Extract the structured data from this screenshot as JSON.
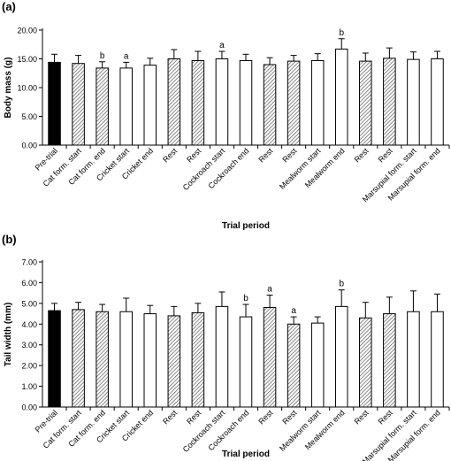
{
  "chart_data": [
    {
      "type": "bar",
      "panel_label": "(a)",
      "ylabel": "Body mass (g)",
      "xlabel": "Trial period",
      "ylim": [
        0,
        20
      ],
      "y_ticks": [
        "0.00",
        "5.00",
        "10.00",
        "15.00",
        "20.00"
      ],
      "y_tick_values": [
        0,
        5,
        10,
        15,
        20
      ],
      "grid": false,
      "categories": [
        "Pre-trial",
        "Cat form. start",
        "Cat form. end",
        "Cricket start",
        "Cricket end",
        "Rest",
        "Rest",
        "Cockroach start",
        "Cockroach end",
        "Rest",
        "Rest",
        "Mealworm start",
        "Mealworm end",
        "Rest",
        "Rest",
        "Marsupial form. start",
        "Marsupial form. end"
      ],
      "values": [
        14.4,
        14.2,
        13.4,
        13.4,
        13.9,
        15.0,
        14.7,
        15.0,
        14.7,
        14.0,
        14.6,
        14.7,
        16.7,
        14.6,
        15.1,
        14.9,
        15.0
      ],
      "errors": [
        1.4,
        1.4,
        1.1,
        1.0,
        1.2,
        1.6,
        1.6,
        1.3,
        1.1,
        1.2,
        1.0,
        1.2,
        1.8,
        1.4,
        1.8,
        1.3,
        1.3
      ],
      "annotations": [
        "",
        "",
        "b",
        "a",
        "",
        "",
        "",
        "a",
        "",
        "",
        "",
        "",
        "b",
        "",
        "",
        "",
        ""
      ],
      "bar_styles": [
        "solid",
        "hatched",
        "hatched",
        "open",
        "open",
        "hatched",
        "hatched",
        "open",
        "open",
        "hatched",
        "hatched",
        "open",
        "open",
        "hatched",
        "hatched",
        "open",
        "open"
      ]
    },
    {
      "type": "bar",
      "panel_label": "(b)",
      "ylabel": "Tail width (mm)",
      "xlabel": "Trial period",
      "ylim": [
        0,
        7
      ],
      "y_ticks": [
        "0.00",
        "1.00",
        "2.00",
        "3.00",
        "4.00",
        "5.00",
        "6.00",
        "7.00"
      ],
      "y_tick_values": [
        0,
        1,
        2,
        3,
        4,
        5,
        6,
        7
      ],
      "grid": false,
      "categories": [
        "Pre-trial",
        "Cat form. start",
        "Cat form. end",
        "Cricket start",
        "Cricket end",
        "Rest",
        "Rest",
        "Cockroach start",
        "Cockroach end",
        "Rest",
        "Rest",
        "Mealworm start",
        "Mealworm end",
        "Rest",
        "Rest",
        "Marsupial form. start",
        "Marsupial form. end"
      ],
      "values": [
        4.65,
        4.7,
        4.6,
        4.6,
        4.5,
        4.4,
        4.55,
        4.85,
        4.35,
        4.8,
        4.0,
        4.05,
        4.85,
        4.3,
        4.5,
        4.6,
        4.6
      ],
      "errors": [
        0.35,
        0.35,
        0.35,
        0.65,
        0.4,
        0.45,
        0.45,
        0.7,
        0.6,
        0.6,
        0.35,
        0.3,
        0.8,
        0.75,
        0.8,
        1.0,
        0.85
      ],
      "annotations": [
        "",
        "",
        "",
        "",
        "",
        "",
        "",
        "",
        "b",
        "a",
        "a",
        "",
        "b",
        "",
        "",
        "",
        ""
      ],
      "bar_styles": [
        "solid",
        "hatched",
        "hatched",
        "open",
        "open",
        "hatched",
        "hatched",
        "open",
        "open",
        "hatched",
        "hatched",
        "open",
        "open",
        "hatched",
        "hatched",
        "open",
        "open"
      ]
    }
  ]
}
